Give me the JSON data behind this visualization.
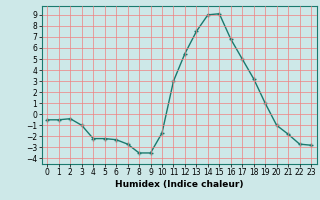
{
  "x": [
    0,
    1,
    2,
    3,
    4,
    5,
    6,
    7,
    8,
    9,
    10,
    11,
    12,
    13,
    14,
    15,
    16,
    17,
    18,
    19,
    20,
    21,
    22,
    23
  ],
  "y": [
    -0.5,
    -0.5,
    -0.4,
    -1.0,
    -2.2,
    -2.2,
    -2.3,
    -2.7,
    -3.5,
    -3.5,
    -1.7,
    3.0,
    5.5,
    7.5,
    9.0,
    9.1,
    6.8,
    5.0,
    3.2,
    1.0,
    -1.0,
    -1.8,
    -2.7,
    -2.8
  ],
  "line_color": "#1a7a6e",
  "marker": "+",
  "marker_size": 3,
  "xlabel": "Humidex (Indice chaleur)",
  "bg_color": "#cde8e8",
  "grid_color": "#f08080",
  "ylim": [
    -4.5,
    9.8
  ],
  "xlim": [
    -0.5,
    23.5
  ],
  "yticks": [
    -4,
    -3,
    -2,
    -1,
    0,
    1,
    2,
    3,
    4,
    5,
    6,
    7,
    8,
    9
  ],
  "xticks": [
    0,
    1,
    2,
    3,
    4,
    5,
    6,
    7,
    8,
    9,
    10,
    11,
    12,
    13,
    14,
    15,
    16,
    17,
    18,
    19,
    20,
    21,
    22,
    23
  ],
  "tick_fontsize": 5.5,
  "xlabel_fontsize": 6.5,
  "line_width": 1.0
}
